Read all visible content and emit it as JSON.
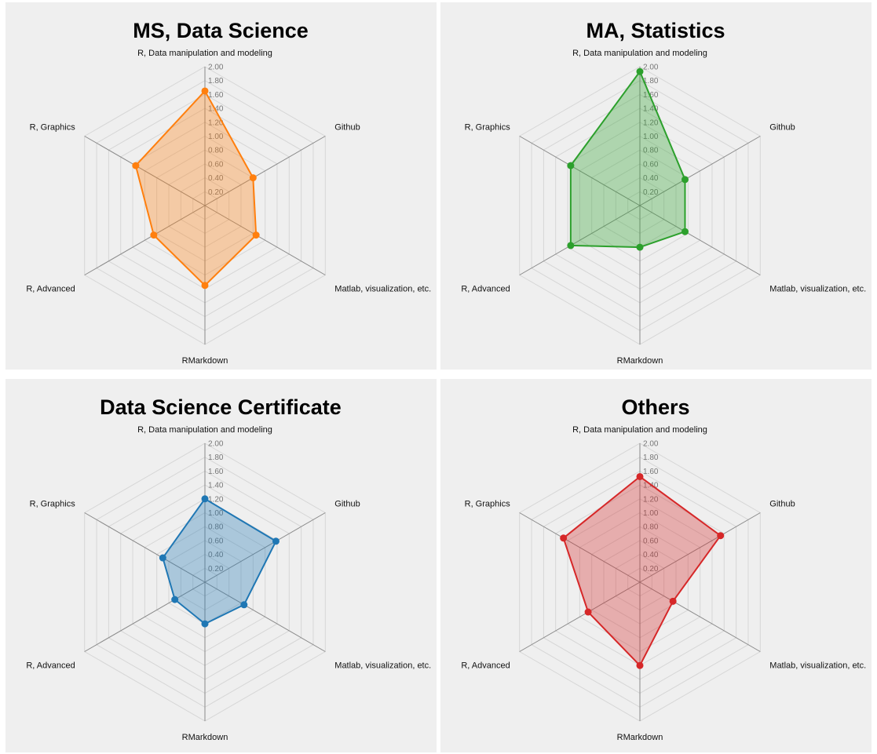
{
  "chart_data": [
    {
      "type": "radar",
      "title": "MS, Data Science",
      "color": "#ff7f0e",
      "axes": [
        "R, Data manipulation and modeling",
        "Github",
        "Matlab, visualization, etc.",
        "RMarkdown",
        "R, Advanced",
        "R, Graphics"
      ],
      "values": [
        1.65,
        0.8,
        0.85,
        1.15,
        0.85,
        1.15
      ],
      "range": [
        0,
        2
      ],
      "ticks": [
        "0.20",
        "0.40",
        "0.60",
        "0.80",
        "1.00",
        "1.20",
        "1.40",
        "1.60",
        "1.80",
        "2.00"
      ],
      "grid": true,
      "legend": false
    },
    {
      "type": "radar",
      "title": "MA, Statistics",
      "color": "#2ca02c",
      "axes": [
        "R, Data manipulation and modeling",
        "Github",
        "Matlab, visualization, etc.",
        "RMarkdown",
        "R, Advanced",
        "R, Graphics"
      ],
      "values": [
        1.93,
        0.75,
        0.75,
        0.6,
        1.15,
        1.15
      ],
      "range": [
        0,
        2
      ],
      "ticks": [
        "0.20",
        "0.40",
        "0.60",
        "0.80",
        "1.00",
        "1.20",
        "1.40",
        "1.60",
        "1.80",
        "2.00"
      ],
      "grid": true,
      "legend": false
    },
    {
      "type": "radar",
      "title": "Data Science Certificate",
      "color": "#1f77b4",
      "axes": [
        "R, Data manipulation and modeling",
        "Github",
        "Matlab, visualization, etc.",
        "RMarkdown",
        "R, Advanced",
        "R, Graphics"
      ],
      "values": [
        1.2,
        1.18,
        0.65,
        0.6,
        0.5,
        0.7
      ],
      "range": [
        0,
        2
      ],
      "ticks": [
        "0.20",
        "0.40",
        "0.60",
        "0.80",
        "1.00",
        "1.20",
        "1.40",
        "1.60",
        "1.80",
        "2.00"
      ],
      "grid": true,
      "legend": false
    },
    {
      "type": "radar",
      "title": "Others",
      "color": "#d62728",
      "axes": [
        "R, Data manipulation and modeling",
        "Github",
        "Matlab, visualization, etc.",
        "RMarkdown",
        "R, Advanced",
        "R, Graphics"
      ],
      "values": [
        1.52,
        1.34,
        0.55,
        1.2,
        0.86,
        1.27
      ],
      "range": [
        0,
        2
      ],
      "ticks": [
        "0.20",
        "0.40",
        "0.60",
        "0.80",
        "1.00",
        "1.20",
        "1.40",
        "1.60",
        "1.80",
        "2.00"
      ],
      "grid": true,
      "legend": false
    }
  ]
}
